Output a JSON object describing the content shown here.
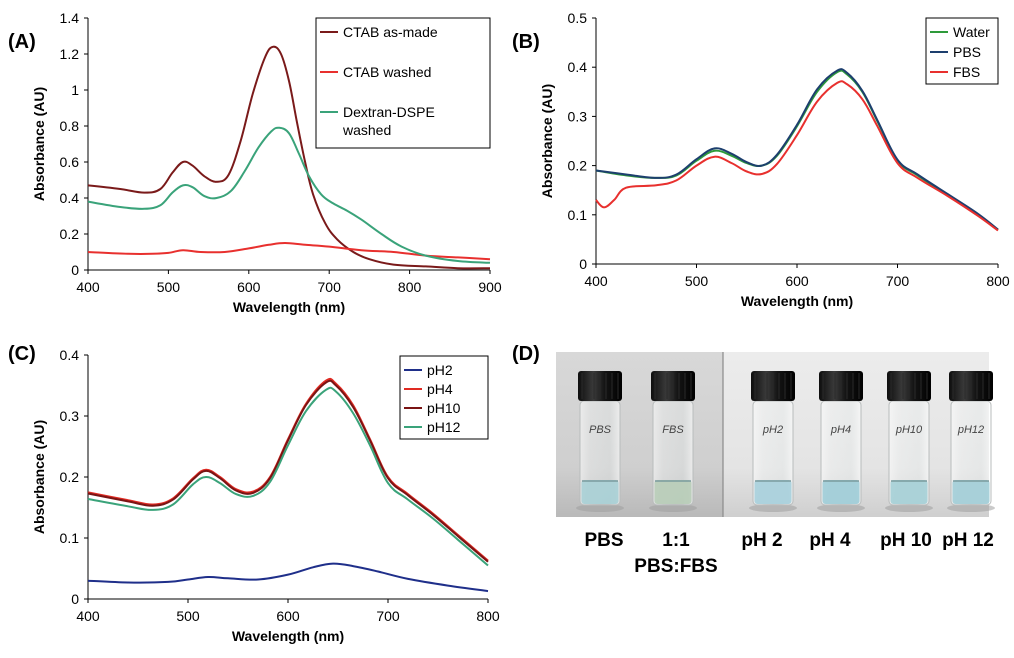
{
  "panels": {
    "A": "(A)",
    "B": "(B)",
    "C": "(C)",
    "D": "(D)"
  },
  "chart_data": [
    {
      "id": "A",
      "type": "line",
      "xlabel": "Wavelength (nm)",
      "ylabel": "Absorbance (AU)",
      "xlim": [
        400,
        900
      ],
      "ylim": [
        0,
        1.4
      ],
      "xticks": [
        "400",
        "500",
        "600",
        "700",
        "800",
        "900"
      ],
      "yticks": [
        "0",
        "0.2",
        "0.4",
        "0.6",
        "0.8",
        "1",
        "1.2",
        "1.4"
      ],
      "legend_position": "top-right",
      "grid": false,
      "series": [
        {
          "name": "CTAB as-made",
          "color": "#7a1a1a",
          "points": [
            [
              400,
              0.47
            ],
            [
              440,
              0.45
            ],
            [
              470,
              0.43
            ],
            [
              490,
              0.45
            ],
            [
              505,
              0.54
            ],
            [
              518,
              0.6
            ],
            [
              530,
              0.58
            ],
            [
              545,
              0.52
            ],
            [
              560,
              0.49
            ],
            [
              575,
              0.53
            ],
            [
              590,
              0.72
            ],
            [
              605,
              0.98
            ],
            [
              620,
              1.18
            ],
            [
              630,
              1.24
            ],
            [
              640,
              1.2
            ],
            [
              650,
              1.05
            ],
            [
              660,
              0.82
            ],
            [
              670,
              0.6
            ],
            [
              680,
              0.42
            ],
            [
              695,
              0.26
            ],
            [
              710,
              0.17
            ],
            [
              730,
              0.1
            ],
            [
              750,
              0.06
            ],
            [
              780,
              0.03
            ],
            [
              820,
              0.02
            ],
            [
              860,
              0.01
            ],
            [
              900,
              0.01
            ]
          ]
        },
        {
          "name": "CTAB washed",
          "color": "#e8302e",
          "points": [
            [
              400,
              0.1
            ],
            [
              450,
              0.09
            ],
            [
              480,
              0.09
            ],
            [
              500,
              0.095
            ],
            [
              518,
              0.11
            ],
            [
              540,
              0.1
            ],
            [
              570,
              0.1
            ],
            [
              600,
              0.12
            ],
            [
              625,
              0.14
            ],
            [
              645,
              0.15
            ],
            [
              670,
              0.14
            ],
            [
              700,
              0.13
            ],
            [
              740,
              0.11
            ],
            [
              780,
              0.1
            ],
            [
              820,
              0.08
            ],
            [
              860,
              0.07
            ],
            [
              900,
              0.06
            ]
          ]
        },
        {
          "name": "Dextran-DSPE washed",
          "color": "#3aa37a",
          "points": [
            [
              400,
              0.38
            ],
            [
              440,
              0.35
            ],
            [
              470,
              0.34
            ],
            [
              490,
              0.36
            ],
            [
              505,
              0.43
            ],
            [
              518,
              0.47
            ],
            [
              530,
              0.46
            ],
            [
              545,
              0.41
            ],
            [
              560,
              0.4
            ],
            [
              578,
              0.44
            ],
            [
              595,
              0.55
            ],
            [
              612,
              0.68
            ],
            [
              628,
              0.77
            ],
            [
              638,
              0.79
            ],
            [
              650,
              0.76
            ],
            [
              662,
              0.65
            ],
            [
              675,
              0.52
            ],
            [
              690,
              0.42
            ],
            [
              705,
              0.37
            ],
            [
              722,
              0.33
            ],
            [
              740,
              0.28
            ],
            [
              765,
              0.2
            ],
            [
              790,
              0.13
            ],
            [
              820,
              0.08
            ],
            [
              860,
              0.05
            ],
            [
              900,
              0.04
            ]
          ]
        }
      ]
    },
    {
      "id": "B",
      "type": "line",
      "xlabel": "Wavelength (nm)",
      "ylabel": "Absorbance (AU)",
      "xlim": [
        400,
        800
      ],
      "ylim": [
        0,
        0.5
      ],
      "xticks": [
        "400",
        "500",
        "600",
        "700",
        "800"
      ],
      "yticks": [
        "0",
        "0.1",
        "0.2",
        "0.3",
        "0.4",
        "0.5"
      ],
      "legend_position": "top-right",
      "grid": false,
      "series": [
        {
          "name": "Water",
          "color": "#2e9a3a",
          "points": [
            [
              400,
              0.19
            ],
            [
              430,
              0.18
            ],
            [
              460,
              0.175
            ],
            [
              480,
              0.18
            ],
            [
              500,
              0.21
            ],
            [
              518,
              0.23
            ],
            [
              535,
              0.22
            ],
            [
              550,
              0.205
            ],
            [
              565,
              0.2
            ],
            [
              580,
              0.22
            ],
            [
              600,
              0.28
            ],
            [
              620,
              0.35
            ],
            [
              640,
              0.39
            ],
            [
              650,
              0.385
            ],
            [
              665,
              0.35
            ],
            [
              680,
              0.29
            ],
            [
              700,
              0.21
            ],
            [
              720,
              0.18
            ],
            [
              750,
              0.14
            ],
            [
              780,
              0.1
            ],
            [
              800,
              0.07
            ]
          ]
        },
        {
          "name": "PBS",
          "color": "#1d3f6e",
          "points": [
            [
              400,
              0.19
            ],
            [
              430,
              0.182
            ],
            [
              460,
              0.175
            ],
            [
              480,
              0.182
            ],
            [
              500,
              0.213
            ],
            [
              518,
              0.235
            ],
            [
              535,
              0.224
            ],
            [
              550,
              0.207
            ],
            [
              565,
              0.2
            ],
            [
              580,
              0.222
            ],
            [
              600,
              0.283
            ],
            [
              620,
              0.355
            ],
            [
              640,
              0.393
            ],
            [
              650,
              0.388
            ],
            [
              665,
              0.352
            ],
            [
              680,
              0.292
            ],
            [
              700,
              0.212
            ],
            [
              720,
              0.182
            ],
            [
              750,
              0.142
            ],
            [
              780,
              0.102
            ],
            [
              800,
              0.07
            ]
          ]
        },
        {
          "name": "FBS",
          "color": "#e8302e",
          "points": [
            [
              400,
              0.13
            ],
            [
              408,
              0.115
            ],
            [
              418,
              0.13
            ],
            [
              430,
              0.155
            ],
            [
              460,
              0.16
            ],
            [
              480,
              0.17
            ],
            [
              500,
              0.2
            ],
            [
              518,
              0.218
            ],
            [
              535,
              0.205
            ],
            [
              550,
              0.188
            ],
            [
              565,
              0.183
            ],
            [
              580,
              0.203
            ],
            [
              600,
              0.262
            ],
            [
              620,
              0.33
            ],
            [
              640,
              0.368
            ],
            [
              650,
              0.365
            ],
            [
              665,
              0.335
            ],
            [
              680,
              0.28
            ],
            [
              700,
              0.205
            ],
            [
              720,
              0.175
            ],
            [
              750,
              0.138
            ],
            [
              780,
              0.098
            ],
            [
              800,
              0.068
            ]
          ]
        }
      ]
    },
    {
      "id": "C",
      "type": "line",
      "xlabel": "Wavelength (nm)",
      "ylabel": "Absorbance (AU)",
      "xlim": [
        400,
        800
      ],
      "ylim": [
        0,
        0.4
      ],
      "xticks": [
        "400",
        "500",
        "600",
        "700",
        "800"
      ],
      "yticks": [
        "0",
        "0.1",
        "0.2",
        "0.3",
        "0.4"
      ],
      "legend_position": "top-right",
      "grid": false,
      "series": [
        {
          "name": "pH2",
          "color": "#1f2f8a",
          "points": [
            [
              400,
              0.03
            ],
            [
              440,
              0.027
            ],
            [
              480,
              0.028
            ],
            [
              500,
              0.032
            ],
            [
              520,
              0.036
            ],
            [
              540,
              0.034
            ],
            [
              570,
              0.032
            ],
            [
              600,
              0.04
            ],
            [
              625,
              0.052
            ],
            [
              645,
              0.058
            ],
            [
              665,
              0.054
            ],
            [
              690,
              0.045
            ],
            [
              720,
              0.033
            ],
            [
              760,
              0.022
            ],
            [
              800,
              0.013
            ]
          ]
        },
        {
          "name": "pH4",
          "color": "#e02a22",
          "points": [
            [
              400,
              0.175
            ],
            [
              440,
              0.162
            ],
            [
              465,
              0.155
            ],
            [
              485,
              0.165
            ],
            [
              505,
              0.198
            ],
            [
              518,
              0.212
            ],
            [
              532,
              0.2
            ],
            [
              548,
              0.18
            ],
            [
              565,
              0.176
            ],
            [
              582,
              0.2
            ],
            [
              600,
              0.262
            ],
            [
              618,
              0.32
            ],
            [
              638,
              0.358
            ],
            [
              648,
              0.353
            ],
            [
              665,
              0.318
            ],
            [
              682,
              0.262
            ],
            [
              700,
              0.2
            ],
            [
              720,
              0.172
            ],
            [
              745,
              0.14
            ],
            [
              770,
              0.105
            ],
            [
              800,
              0.063
            ]
          ]
        },
        {
          "name": "pH10",
          "color": "#7a1414",
          "points": [
            [
              400,
              0.173
            ],
            [
              440,
              0.16
            ],
            [
              465,
              0.153
            ],
            [
              485,
              0.163
            ],
            [
              505,
              0.196
            ],
            [
              518,
              0.21
            ],
            [
              532,
              0.198
            ],
            [
              548,
              0.178
            ],
            [
              565,
              0.174
            ],
            [
              582,
              0.198
            ],
            [
              600,
              0.26
            ],
            [
              618,
              0.318
            ],
            [
              638,
              0.355
            ],
            [
              648,
              0.35
            ],
            [
              665,
              0.315
            ],
            [
              682,
              0.26
            ],
            [
              700,
              0.198
            ],
            [
              720,
              0.17
            ],
            [
              745,
              0.138
            ],
            [
              770,
              0.103
            ],
            [
              800,
              0.061
            ]
          ]
        },
        {
          "name": "pH12",
          "color": "#3aa37a",
          "points": [
            [
              400,
              0.164
            ],
            [
              440,
              0.152
            ],
            [
              465,
              0.146
            ],
            [
              485,
              0.155
            ],
            [
              505,
              0.188
            ],
            [
              518,
              0.2
            ],
            [
              532,
              0.19
            ],
            [
              548,
              0.172
            ],
            [
              565,
              0.169
            ],
            [
              582,
              0.192
            ],
            [
              600,
              0.252
            ],
            [
              618,
              0.308
            ],
            [
              638,
              0.343
            ],
            [
              648,
              0.34
            ],
            [
              665,
              0.305
            ],
            [
              682,
              0.252
            ],
            [
              700,
              0.19
            ],
            [
              720,
              0.163
            ],
            [
              745,
              0.132
            ],
            [
              770,
              0.097
            ],
            [
              800,
              0.055
            ]
          ]
        }
      ]
    }
  ],
  "photo": {
    "handwriting": [
      "PBS",
      "FBS",
      "pH2",
      "pH4",
      "pH10",
      "pH12"
    ],
    "labels": [
      {
        "text": "PBS"
      },
      {
        "text": "1:1"
      },
      {
        "text": "PBS:FBS"
      },
      {
        "text": "pH 2"
      },
      {
        "text": "pH 4"
      },
      {
        "text": "pH 10"
      },
      {
        "text": "pH 12"
      }
    ],
    "liquid_colors": [
      "#a9d0d6",
      "#b8cdb8",
      "#a8d0dc",
      "#9fcdd8",
      "#a6d0d7",
      "#a3ced8"
    ]
  }
}
